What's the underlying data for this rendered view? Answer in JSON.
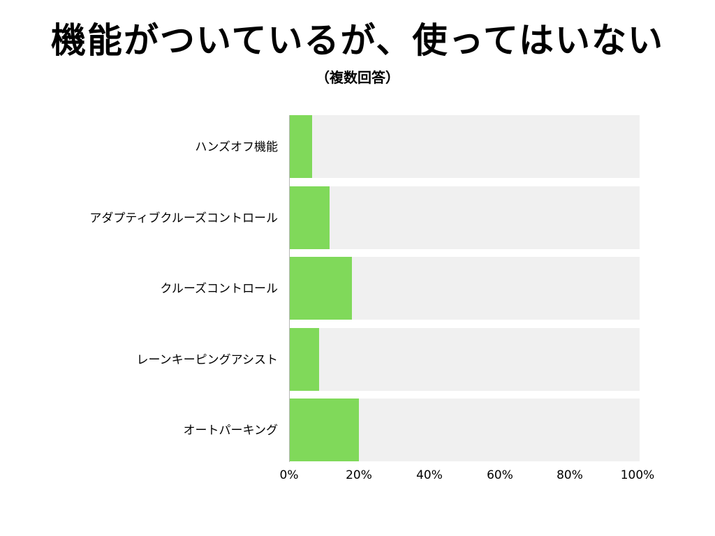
{
  "chart_data": {
    "type": "bar",
    "orientation": "horizontal",
    "title": "機能がついているが、使ってはいない",
    "subtitle": "（複数回答）",
    "categories": [
      "ハンズオフ機能",
      "アダプティブクルーズコントロール",
      "クルーズコントロール",
      "レーンキーピングアシスト",
      "オートパーキング"
    ],
    "values": [
      6.5,
      11.5,
      18,
      8.5,
      20
    ],
    "unit": "%",
    "xlabel": "",
    "ylabel": "",
    "xlim": [
      0,
      100
    ],
    "xticks": [
      "0%",
      "20%",
      "40%",
      "60%",
      "80%",
      "100%"
    ],
    "grid": true,
    "legend": null,
    "colors": {
      "bar": "#80d95a",
      "track": "#f0f0f0",
      "grid": "#b8b8b8"
    }
  }
}
